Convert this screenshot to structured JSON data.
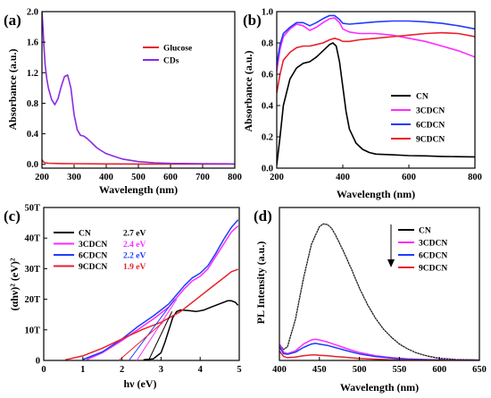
{
  "figure": {
    "panels": [
      {
        "letter": "(a)",
        "xlabel": "Wavelength (nm)",
        "ylabel": "Absorbance (a.u.)"
      },
      {
        "letter": "(b)",
        "xlabel": "Wavelength (nm)",
        "ylabel": "Absorbance (a.u.)"
      },
      {
        "letter": "(c)",
        "xlabel": "hν (eV)",
        "ylabel": "(αhν)² (eV)²"
      },
      {
        "letter": "(d)",
        "xlabel": "Wavelength (nm)",
        "ylabel": "PL Intensity (a.u.)"
      }
    ]
  },
  "chart_data": [
    {
      "type": "line",
      "title": "",
      "xlabel": "Wavelength (nm)",
      "ylabel": "Absorbance (a.u.)",
      "xlim": [
        200,
        800
      ],
      "ylim": [
        -0.05,
        2.0
      ],
      "xticks": [
        "200",
        "300",
        "400",
        "500",
        "600",
        "700",
        "800"
      ],
      "yticks": [
        "0.0",
        "0.4",
        "0.8",
        "1.2",
        "1.6",
        "2.0"
      ],
      "legend_position": "upper-right",
      "series": [
        {
          "name": "Glucose",
          "color": "#e8202a",
          "x": [
            200,
            205,
            210,
            220,
            240,
            260,
            300,
            400,
            500,
            600,
            700,
            800
          ],
          "y": [
            0.06,
            0.03,
            0.02,
            0.015,
            0.012,
            0.01,
            0.008,
            0.005,
            0.004,
            0.003,
            0.003,
            0.003
          ]
        },
        {
          "name": "CDs",
          "color": "#8a2be2",
          "x": [
            200,
            203,
            206,
            210,
            215,
            220,
            230,
            240,
            250,
            260,
            270,
            280,
            290,
            300,
            310,
            320,
            330,
            340,
            350,
            360,
            370,
            380,
            400,
            420,
            450,
            500,
            550,
            600,
            700,
            800
          ],
          "y": [
            2.0,
            1.8,
            1.55,
            1.3,
            1.12,
            1.0,
            0.85,
            0.78,
            0.86,
            1.02,
            1.15,
            1.17,
            1.0,
            0.65,
            0.45,
            0.38,
            0.37,
            0.34,
            0.3,
            0.26,
            0.22,
            0.19,
            0.14,
            0.11,
            0.07,
            0.035,
            0.02,
            0.012,
            0.008,
            0.005
          ]
        }
      ]
    },
    {
      "type": "line",
      "title": "",
      "xlabel": "Wavelength (nm)",
      "ylabel": "Absorbance (a.u.)",
      "xlim": [
        200,
        800
      ],
      "ylim": [
        0.0,
        1.0
      ],
      "xticks": [
        "200",
        "400",
        "600",
        "800"
      ],
      "yticks": [
        "0.0",
        "0.2",
        "0.4",
        "0.6",
        "0.8",
        "1.0"
      ],
      "legend_position": "lower-right",
      "series": [
        {
          "name": "CN",
          "color": "#000000",
          "x": [
            200,
            210,
            220,
            240,
            260,
            280,
            300,
            320,
            340,
            360,
            370,
            380,
            390,
            400,
            410,
            420,
            440,
            460,
            480,
            500,
            550,
            600,
            650,
            700,
            750,
            800
          ],
          "y": [
            0.02,
            0.2,
            0.4,
            0.57,
            0.64,
            0.67,
            0.68,
            0.71,
            0.75,
            0.79,
            0.8,
            0.78,
            0.68,
            0.52,
            0.36,
            0.25,
            0.16,
            0.12,
            0.1,
            0.09,
            0.085,
            0.08,
            0.078,
            0.075,
            0.073,
            0.072
          ]
        },
        {
          "name": "3CDCN",
          "color": "#ff2bff",
          "x": [
            200,
            210,
            220,
            240,
            260,
            280,
            300,
            320,
            340,
            360,
            375,
            390,
            400,
            420,
            450,
            500,
            550,
            600,
            650,
            700,
            750,
            800
          ],
          "y": [
            0.62,
            0.76,
            0.84,
            0.89,
            0.92,
            0.91,
            0.88,
            0.9,
            0.93,
            0.955,
            0.96,
            0.93,
            0.89,
            0.87,
            0.86,
            0.86,
            0.85,
            0.83,
            0.81,
            0.78,
            0.75,
            0.71
          ]
        },
        {
          "name": "6CDCN",
          "color": "#1e3cff",
          "x": [
            200,
            210,
            220,
            240,
            260,
            280,
            300,
            320,
            340,
            360,
            375,
            390,
            400,
            420,
            450,
            500,
            550,
            600,
            650,
            700,
            750,
            800
          ],
          "y": [
            0.66,
            0.79,
            0.86,
            0.9,
            0.93,
            0.93,
            0.91,
            0.93,
            0.955,
            0.975,
            0.975,
            0.95,
            0.925,
            0.92,
            0.925,
            0.935,
            0.94,
            0.94,
            0.935,
            0.925,
            0.91,
            0.89
          ]
        },
        {
          "name": "9CDCN",
          "color": "#e8202a",
          "x": [
            200,
            210,
            220,
            240,
            260,
            280,
            300,
            320,
            340,
            360,
            375,
            390,
            400,
            420,
            450,
            500,
            550,
            600,
            650,
            700,
            750,
            800
          ],
          "y": [
            0.48,
            0.6,
            0.69,
            0.74,
            0.77,
            0.78,
            0.78,
            0.79,
            0.8,
            0.82,
            0.83,
            0.82,
            0.81,
            0.81,
            0.82,
            0.83,
            0.84,
            0.85,
            0.86,
            0.865,
            0.86,
            0.84
          ]
        }
      ]
    },
    {
      "type": "line",
      "title": "",
      "xlabel": "hν (eV)",
      "ylabel": "(αhν)² (eV)²",
      "xlim": [
        0,
        5
      ],
      "ylim": [
        0,
        50
      ],
      "y_unit": "T",
      "xticks": [
        "0",
        "1",
        "2",
        "3",
        "4",
        "5"
      ],
      "yticks": [
        "0",
        "10T",
        "20T",
        "30T",
        "40T",
        "50T"
      ],
      "legend_position": "upper-left",
      "band_gaps": [
        {
          "series": "CN",
          "label": "2.7 eV",
          "color": "#000000"
        },
        {
          "series": "3CDCN",
          "label": "2.4 eV",
          "color": "#ff2bff"
        },
        {
          "series": "6CDCN",
          "label": "2.2 eV",
          "color": "#1e3cff"
        },
        {
          "series": "9CDCN",
          "label": "1.9 eV",
          "color": "#e8202a"
        }
      ],
      "series": [
        {
          "name": "CN",
          "color": "#000000",
          "x": [
            2.55,
            2.8,
            3.0,
            3.1,
            3.2,
            3.3,
            3.4,
            3.5,
            3.7,
            3.9,
            4.1,
            4.3,
            4.5,
            4.7,
            4.8,
            4.9,
            4.97
          ],
          "y": [
            0.2,
            0.5,
            2.5,
            6,
            10,
            14,
            16,
            16.5,
            16.3,
            16.0,
            16.5,
            17.5,
            18.5,
            19.5,
            19.5,
            19.0,
            18.0
          ]
        },
        {
          "name": "3CDCN",
          "color": "#ff2bff",
          "x": [
            1.1,
            1.5,
            2.0,
            2.4,
            2.8,
            3.0,
            3.2,
            3.4,
            3.6,
            3.8,
            4.0,
            4.2,
            4.4,
            4.6,
            4.8,
            4.97
          ],
          "y": [
            0.3,
            2.5,
            6.5,
            10,
            13.5,
            15.5,
            17.5,
            20.5,
            23.5,
            26,
            27.5,
            30,
            34,
            38,
            42,
            44
          ]
        },
        {
          "name": "6CDCN",
          "color": "#1e3cff",
          "x": [
            1.0,
            1.5,
            2.0,
            2.4,
            2.8,
            3.0,
            3.2,
            3.4,
            3.6,
            3.8,
            4.0,
            4.2,
            4.4,
            4.6,
            4.8,
            4.97
          ],
          "y": [
            0.3,
            2.8,
            7,
            11,
            14.5,
            16.5,
            18.5,
            21.5,
            24.5,
            27,
            28.5,
            31,
            35,
            39.5,
            43.5,
            46
          ]
        },
        {
          "name": "9CDCN",
          "color": "#e8202a",
          "x": [
            0.55,
            1.0,
            1.5,
            2.0,
            2.5,
            3.0,
            3.5,
            4.0,
            4.3,
            4.6,
            4.8,
            4.97
          ],
          "y": [
            0.2,
            1.5,
            4.0,
            7.0,
            10,
            12.5,
            16,
            21,
            24,
            27,
            29,
            29.8
          ]
        }
      ]
    },
    {
      "type": "line",
      "title": "",
      "xlabel": "Wavelength (nm)",
      "ylabel": "PL Intensity (a.u.)",
      "xlim": [
        400,
        650
      ],
      "ylim": [
        0,
        1.12
      ],
      "xticks": [
        "400",
        "450",
        "500",
        "550",
        "600",
        "650"
      ],
      "yticks": [],
      "legend_position": "upper-right",
      "legend_arrow": "down",
      "series": [
        {
          "name": "CN",
          "color": "#000000",
          "x": [
            400,
            405,
            410,
            420,
            430,
            440,
            450,
            455,
            460,
            465,
            470,
            480,
            490,
            500,
            510,
            520,
            530,
            540,
            550,
            560,
            570,
            580,
            590,
            600,
            620,
            650
          ],
          "y": [
            0.12,
            0.08,
            0.1,
            0.3,
            0.6,
            0.85,
            0.98,
            1.0,
            0.995,
            0.97,
            0.92,
            0.8,
            0.67,
            0.53,
            0.41,
            0.31,
            0.23,
            0.17,
            0.12,
            0.085,
            0.058,
            0.04,
            0.026,
            0.016,
            0.008,
            0.003
          ]
        },
        {
          "name": "3CDCN",
          "color": "#ff2bff",
          "x": [
            400,
            405,
            410,
            420,
            430,
            440,
            445,
            450,
            460,
            470,
            480,
            490,
            500,
            520,
            540,
            560,
            580,
            600,
            650
          ],
          "y": [
            0.12,
            0.06,
            0.05,
            0.07,
            0.12,
            0.15,
            0.155,
            0.15,
            0.135,
            0.115,
            0.095,
            0.075,
            0.058,
            0.035,
            0.02,
            0.012,
            0.007,
            0.004,
            0.002
          ]
        },
        {
          "name": "6CDCN",
          "color": "#1e3cff",
          "x": [
            400,
            405,
            410,
            420,
            430,
            440,
            445,
            450,
            460,
            470,
            480,
            490,
            500,
            520,
            540,
            560,
            580,
            600,
            650
          ],
          "y": [
            0.1,
            0.05,
            0.045,
            0.06,
            0.095,
            0.12,
            0.125,
            0.12,
            0.11,
            0.094,
            0.078,
            0.062,
            0.048,
            0.029,
            0.017,
            0.01,
            0.006,
            0.003,
            0.001
          ]
        },
        {
          "name": "9CDCN",
          "color": "#e8202a",
          "x": [
            400,
            405,
            410,
            420,
            430,
            440,
            445,
            450,
            460,
            470,
            480,
            490,
            500,
            520,
            540,
            560,
            580,
            600,
            650
          ],
          "y": [
            0.07,
            0.03,
            0.02,
            0.025,
            0.035,
            0.04,
            0.04,
            0.038,
            0.034,
            0.029,
            0.024,
            0.019,
            0.015,
            0.009,
            0.005,
            0.003,
            0.002,
            0.001,
            0.0
          ]
        }
      ]
    }
  ]
}
